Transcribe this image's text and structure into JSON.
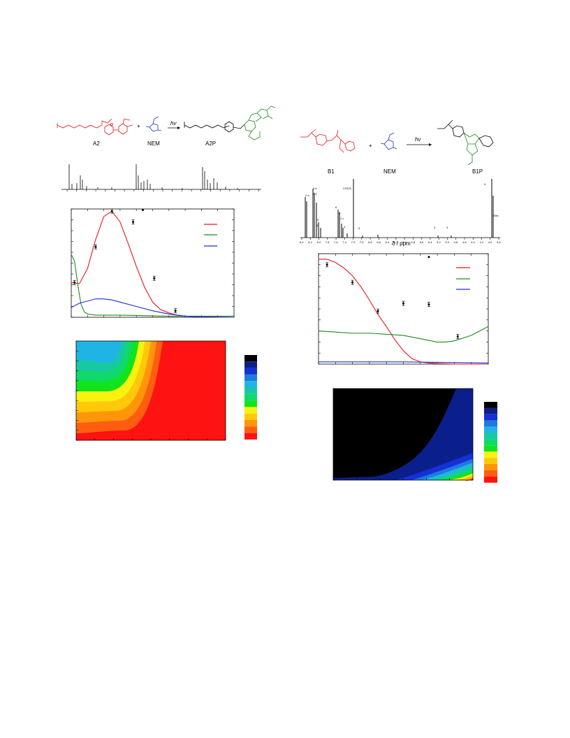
{
  "left_scheme": {
    "reactant_label": "A2",
    "reagent_label": "NEM",
    "product_label": "A2P",
    "arrow_label": "hν",
    "plus": "+"
  },
  "right_scheme": {
    "reactant_label": "B1",
    "reagent_label": "NEM",
    "product_label": "B1P",
    "arrow_label": "hν",
    "plus": "+"
  },
  "nmr_right": {
    "xlabel": "δ / ppm",
    "ticks": [
      "8.4",
      "8.2",
      "8.0",
      "7.8",
      "7.6",
      "7.4",
      "7.2",
      "7.0",
      "6.8",
      "6.6",
      "6.4",
      "6.2",
      "6.0",
      "5.8",
      "5.6",
      "5.4",
      "5.2",
      "5.0",
      "4.8",
      "4.6",
      "4.4",
      "4.2",
      "4.0",
      "3.8"
    ],
    "peak_labels": [
      "2 a",
      "2 b",
      "2 d",
      "5",
      "5",
      "6",
      "6",
      "2 c",
      "CHCl3",
      "4",
      "5",
      "4",
      "4",
      "5",
      "OMe"
    ]
  },
  "colors": {
    "red": "#e8161b",
    "green": "#1f8a1f",
    "blue": "#1a2fd6",
    "black": "#000000"
  },
  "chart_data": [
    {
      "type": "line",
      "panel": "left-kinetics",
      "series": [
        {
          "color": "red",
          "x": [
            0,
            0.05,
            0.1,
            0.15,
            0.2,
            0.25,
            0.3,
            0.35,
            0.4,
            0.45,
            0.5,
            0.55,
            0.6,
            0.65,
            0.7,
            0.8,
            0.9,
            1.0
          ],
          "y": [
            0.32,
            0.31,
            0.45,
            0.72,
            0.93,
            0.98,
            0.88,
            0.68,
            0.47,
            0.28,
            0.14,
            0.07,
            0.04,
            0.02,
            0.01,
            0.005,
            0,
            0
          ]
        },
        {
          "color": "green",
          "x": [
            0,
            0.02,
            0.04,
            0.06,
            0.08,
            0.1,
            0.15,
            0.3,
            0.6,
            1.0
          ],
          "y": [
            0.58,
            0.52,
            0.3,
            0.12,
            0.05,
            0.03,
            0.02,
            0.02,
            0.01,
            0.01
          ]
        },
        {
          "color": "blue",
          "x": [
            0,
            0.05,
            0.1,
            0.15,
            0.2,
            0.25,
            0.3,
            0.4,
            0.5,
            0.6,
            0.7,
            0.8,
            1.0
          ],
          "y": [
            0.09,
            0.13,
            0.15,
            0.17,
            0.17,
            0.16,
            0.14,
            0.1,
            0.06,
            0.03,
            0.01,
            0.005,
            0
          ]
        }
      ],
      "markers": {
        "x": [
          0.02,
          0.15,
          0.25,
          0.38,
          0.51,
          0.64
        ],
        "y": [
          0.32,
          0.65,
          0.98,
          0.88,
          0.36,
          0.06
        ],
        "stars": [
          [
            0.44,
            0.99
          ]
        ]
      }
    },
    {
      "type": "line",
      "panel": "right-kinetics",
      "series": [
        {
          "color": "red",
          "x": [
            0,
            0.05,
            0.1,
            0.15,
            0.2,
            0.25,
            0.3,
            0.35,
            0.4,
            0.45,
            0.5,
            0.55,
            0.6,
            0.65,
            0.7,
            0.8,
            0.9,
            1.0
          ],
          "y": [
            0.95,
            0.95,
            0.92,
            0.87,
            0.8,
            0.7,
            0.58,
            0.45,
            0.34,
            0.22,
            0.12,
            0.05,
            0.02,
            0.01,
            0.005,
            0,
            0,
            0
          ]
        },
        {
          "color": "green",
          "x": [
            0,
            0.1,
            0.2,
            0.3,
            0.4,
            0.5,
            0.6,
            0.7,
            0.75,
            0.8,
            0.9,
            1.0
          ],
          "y": [
            0.3,
            0.29,
            0.28,
            0.28,
            0.27,
            0.26,
            0.23,
            0.2,
            0.2,
            0.21,
            0.26,
            0.34
          ]
        },
        {
          "color": "blue",
          "x": [
            0,
            0.5,
            1.0
          ],
          "y": [
            0.02,
            0.02,
            0.01
          ]
        }
      ],
      "markers": {
        "x": [
          0.05,
          0.2,
          0.35,
          0.5,
          0.65,
          0.82
        ],
        "y": [
          0.9,
          0.74,
          0.48,
          0.55,
          0.54,
          0.25
        ],
        "stars": [
          [
            0.65,
            0.97
          ]
        ]
      }
    },
    {
      "type": "heatmap",
      "panel": "left-contour",
      "legend_colors": [
        "#000000",
        "#0b1f8c",
        "#1530d6",
        "#1e7ae0",
        "#20b4e6",
        "#17c9a3",
        "#0fd96b",
        "#11e41b",
        "#f7f20e",
        "#ffc90a",
        "#ff9609",
        "#ff5d10",
        "#fe1212"
      ]
    },
    {
      "type": "heatmap",
      "panel": "right-contour",
      "legend_colors": [
        "#000000",
        "#0b1f8c",
        "#1530d6",
        "#1e7ae0",
        "#20b4e6",
        "#17c9a3",
        "#0fd96b",
        "#11e41b",
        "#f7f20e",
        "#ffc90a",
        "#ff9609",
        "#ff5d10",
        "#fe1212"
      ]
    }
  ]
}
